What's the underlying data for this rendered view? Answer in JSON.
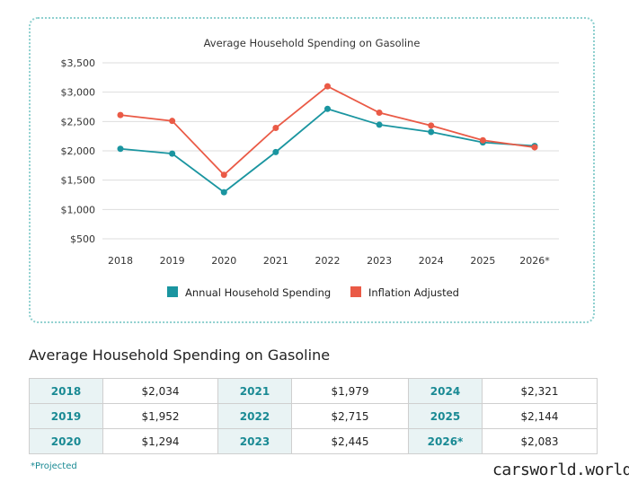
{
  "chart_data": {
    "type": "line",
    "title": "Average Household Spending on Gasoline",
    "categories": [
      "2018",
      "2019",
      "2020",
      "2021",
      "2022",
      "2023",
      "2024",
      "2025",
      "2026*"
    ],
    "yticks": [
      500,
      1000,
      1500,
      2000,
      2500,
      3000,
      3500
    ],
    "ytick_labels": [
      "$500",
      "$1,000",
      "$1,500",
      "$2,000",
      "$2,500",
      "$3,000",
      "$3,500"
    ],
    "ylim": [
      500,
      3500
    ],
    "grid": true,
    "legend_position": "bottom",
    "series": [
      {
        "name": "Annual Household Spending",
        "color": "#1a95a0",
        "values": [
          2034,
          1952,
          1294,
          1979,
          2715,
          2445,
          2321,
          2144,
          2083
        ]
      },
      {
        "name": "Inflation Adjusted",
        "color": "#ea5a46",
        "values": [
          2610,
          2510,
          1590,
          2390,
          3100,
          2650,
          2430,
          2180,
          2060
        ]
      }
    ]
  },
  "table": {
    "title": "Average Household Spending on Gasoline",
    "rows": [
      [
        {
          "year": "2018",
          "value": "$2,034"
        },
        {
          "year": "2021",
          "value": "$1,979"
        },
        {
          "year": "2024",
          "value": "$2,321"
        }
      ],
      [
        {
          "year": "2019",
          "value": "$1,952"
        },
        {
          "year": "2022",
          "value": "$2,715"
        },
        {
          "year": "2025",
          "value": "$2,144"
        }
      ],
      [
        {
          "year": "2020",
          "value": "$1,294"
        },
        {
          "year": "2023",
          "value": "$2,445"
        },
        {
          "year": "2026*",
          "value": "$2,083"
        }
      ]
    ]
  },
  "footnote": "*Projected",
  "watermark": "carsworld.world"
}
